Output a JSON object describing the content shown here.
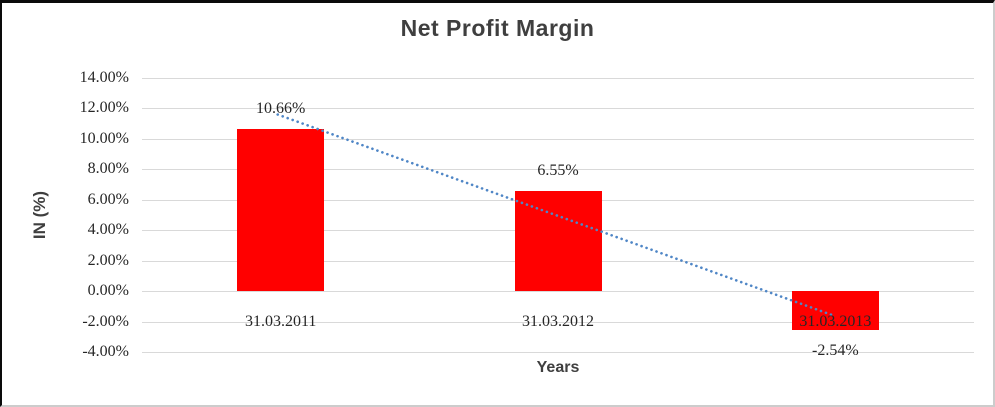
{
  "chart_data": {
    "type": "bar",
    "title": "Net Profit Margin",
    "xlabel": "Years",
    "ylabel": "IN (%)",
    "categories": [
      "31.03.2011",
      "31.03.2012",
      "31.03.2013"
    ],
    "values": [
      10.66,
      6.55,
      -2.54
    ],
    "data_labels": [
      "10.66%",
      "6.55%",
      "-2.54%"
    ],
    "ylim": [
      -4,
      14
    ],
    "ytick_step": 2,
    "ytick_labels": [
      "14.00%",
      "12.00%",
      "10.00%",
      "8.00%",
      "6.00%",
      "4.00%",
      "2.00%",
      "0.00%",
      "-2.00%",
      "-4.00%"
    ],
    "grid": true,
    "legend": "none",
    "category_label_position_value": -2,
    "trendline": {
      "type": "linear",
      "style": "dotted",
      "start_value": 11.6,
      "end_value": -1.6
    }
  },
  "colors": {
    "bar": "#ff0000",
    "gridline": "#d9d9d9",
    "trendline": "#4f86c6",
    "title_text": "#3f3f3f",
    "tick_text": "#262626",
    "frame_top_left": "#0a0a0a",
    "frame_bottom_right": "#cccccc",
    "background": "#ffffff"
  }
}
